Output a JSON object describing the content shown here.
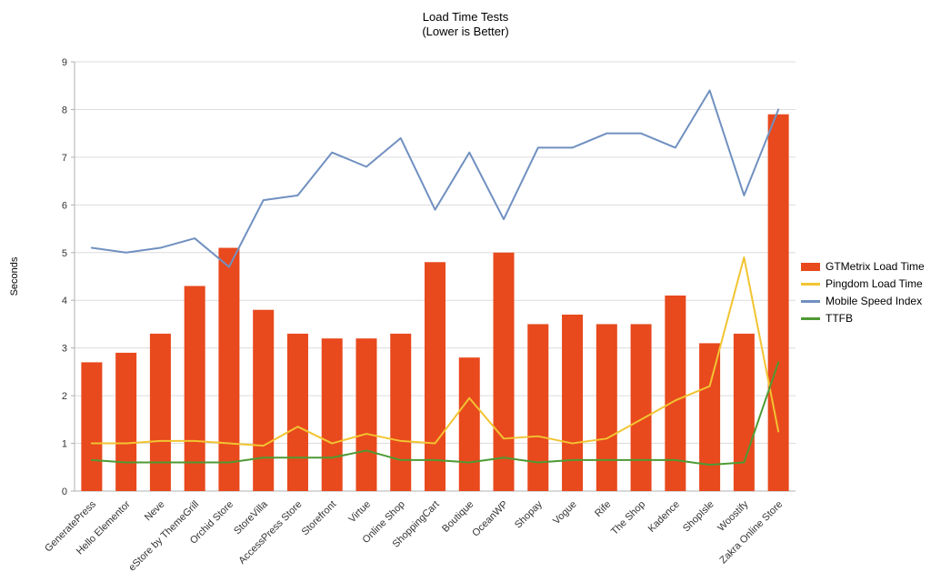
{
  "chart_data": {
    "type": "bar+line",
    "title": "Load Time Tests",
    "subtitle": "(Lower is Better)",
    "xlabel": "",
    "ylabel": "Seconds",
    "ylim": [
      0,
      9
    ],
    "ytick_step": 1,
    "grid": true,
    "legend_position": "right",
    "categories": [
      "GeneratePress",
      "Hello Elementor",
      "Neve",
      "eStore by ThemeGrill",
      "Orchid Store",
      "StoreVilla",
      "AccessPress Store",
      "Storefront",
      "Virtue",
      "Online Shop",
      "ShoppingCart",
      "Boutique",
      "OceanWP",
      "Shopay",
      "Vogue",
      "Rife",
      "The Shop",
      "Kadence",
      "ShopIsle",
      "Woostify",
      "Zakra Online Store"
    ],
    "series": [
      {
        "name": "GTMetrix Load Time",
        "type": "bar",
        "color": "#e8491d",
        "values": [
          2.7,
          2.9,
          3.3,
          4.3,
          5.1,
          3.8,
          3.3,
          3.2,
          3.2,
          3.3,
          4.8,
          2.8,
          5.0,
          3.5,
          3.7,
          3.5,
          3.5,
          4.1,
          3.1,
          3.3,
          7.9
        ]
      },
      {
        "name": "Pingdom Load Time",
        "type": "line",
        "color": "#f2c431",
        "values": [
          1.0,
          1.0,
          1.05,
          1.05,
          1.0,
          0.95,
          1.35,
          1.0,
          1.2,
          1.05,
          1.0,
          1.95,
          1.1,
          1.15,
          1.0,
          1.1,
          1.5,
          1.9,
          2.2,
          4.9,
          1.25
        ]
      },
      {
        "name": "Mobile Speed Index",
        "type": "line",
        "color": "#7090c0",
        "values": [
          5.1,
          5.0,
          5.1,
          5.3,
          4.7,
          6.1,
          6.2,
          7.1,
          6.8,
          7.4,
          5.9,
          7.1,
          5.7,
          7.2,
          7.2,
          7.5,
          7.5,
          7.2,
          8.4,
          6.2,
          8.0
        ]
      },
      {
        "name": "TTFB",
        "type": "line",
        "color": "#4e9a33",
        "values": [
          0.65,
          0.6,
          0.6,
          0.6,
          0.6,
          0.7,
          0.7,
          0.7,
          0.85,
          0.65,
          0.65,
          0.6,
          0.7,
          0.6,
          0.65,
          0.65,
          0.65,
          0.65,
          0.55,
          0.6,
          2.7
        ]
      }
    ]
  }
}
